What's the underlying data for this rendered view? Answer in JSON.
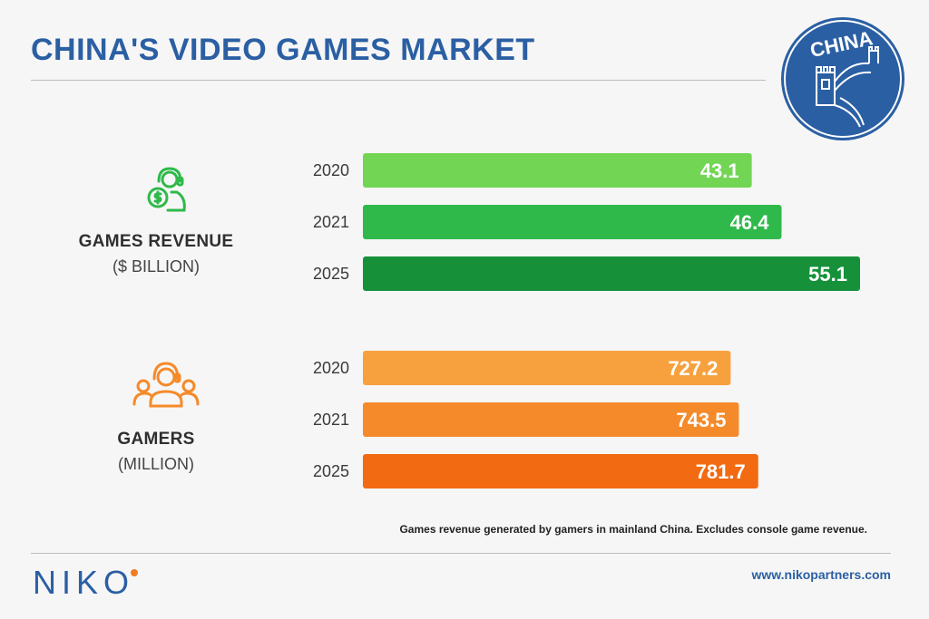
{
  "header": {
    "title": "CHINA'S VIDEO GAMES MARKET"
  },
  "badge": {
    "label": "CHINA"
  },
  "chart_data": [
    {
      "type": "bar",
      "orientation": "horizontal",
      "title": "GAMES REVENUE",
      "unit": "($ BILLION)",
      "categories": [
        "2020",
        "2021",
        "2025"
      ],
      "values": [
        43.1,
        46.4,
        55.1
      ],
      "value_labels": [
        "43.1",
        "46.4",
        "55.1"
      ],
      "xlim": [
        0,
        55.1
      ],
      "colors": [
        "#72d654",
        "#2fb94a",
        "#16913a"
      ]
    },
    {
      "type": "bar",
      "orientation": "horizontal",
      "title": "GAMERS",
      "unit": "(MILLION)",
      "categories": [
        "2020",
        "2021",
        "2025"
      ],
      "values": [
        727.2,
        743.5,
        781.7
      ],
      "value_labels": [
        "727.2",
        "743.5",
        "781.7"
      ],
      "xlim": [
        0,
        879
      ],
      "colors": [
        "#f7a13e",
        "#f58a2a",
        "#f26a12"
      ]
    }
  ],
  "note": "Games revenue generated by gamers in mainland China. Excludes console game revenue.",
  "footer": {
    "logo": "NIKO",
    "url": "www.nikopartners.com"
  },
  "colors": {
    "brand_blue": "#2b5fa3",
    "green_icon": "#2fb94a",
    "orange_icon": "#f58a2a",
    "accent": "#f07d1d"
  }
}
